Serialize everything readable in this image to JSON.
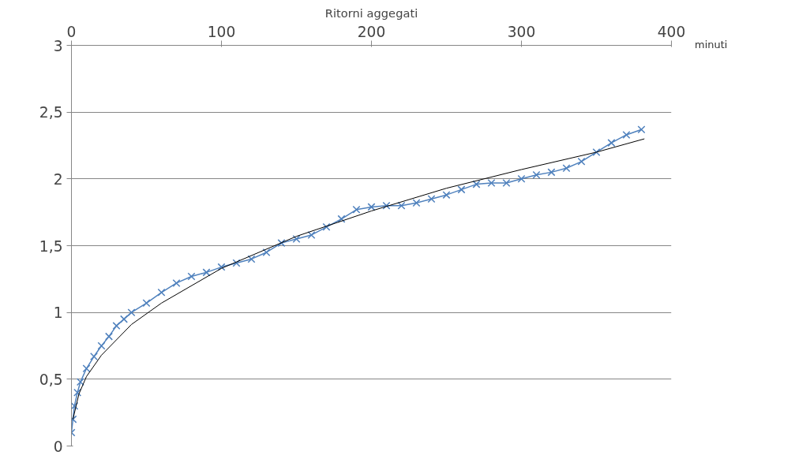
{
  "chart_data": {
    "type": "line",
    "title": "Ritorni aggegati",
    "xlabel": "minuti",
    "xlim": [
      0,
      400
    ],
    "xticks": [
      0,
      100,
      200,
      300,
      400
    ],
    "ylim": [
      0,
      3
    ],
    "yticks": [
      0,
      {
        "value": 0.5,
        "label": "0,5"
      },
      1,
      {
        "value": 1.5,
        "label": "1,5"
      },
      2,
      {
        "value": 2.5,
        "label": "2,5"
      },
      3
    ],
    "grid": "y",
    "marker": "cross",
    "line_style": "solid",
    "series": [
      {
        "color": "#4f81bd",
        "x": [
          0,
          1,
          2,
          4,
          6,
          10,
          15,
          20,
          25,
          30,
          35,
          40,
          50,
          60,
          70,
          80,
          90,
          100,
          110,
          120,
          130,
          140,
          150,
          160,
          170,
          180,
          190,
          200,
          210,
          220,
          230,
          240,
          250,
          260,
          270,
          280,
          290,
          300,
          310,
          320,
          330,
          340,
          350,
          360,
          370,
          380
        ],
        "values": [
          0.1,
          0.2,
          0.3,
          0.4,
          0.48,
          0.58,
          0.67,
          0.75,
          0.82,
          0.9,
          0.95,
          1.0,
          1.07,
          1.15,
          1.22,
          1.27,
          1.3,
          1.34,
          1.37,
          1.4,
          1.45,
          1.52,
          1.55,
          1.58,
          1.64,
          1.7,
          1.77,
          1.79,
          1.8,
          1.8,
          1.82,
          1.85,
          1.88,
          1.92,
          1.96,
          1.97,
          1.97,
          2.0,
          2.03,
          2.05,
          2.08,
          2.13,
          2.2,
          2.27,
          2.33,
          2.37
        ]
      },
      {
        "type": "line",
        "color": "#000000",
        "marker": "none",
        "x": [
          1,
          5,
          10,
          20,
          40,
          60,
          100,
          150,
          200,
          250,
          300,
          350,
          382
        ],
        "values": [
          0.2,
          0.39,
          0.52,
          0.68,
          0.91,
          1.07,
          1.33,
          1.57,
          1.76,
          1.93,
          2.07,
          2.2,
          2.3
        ]
      }
    ]
  }
}
